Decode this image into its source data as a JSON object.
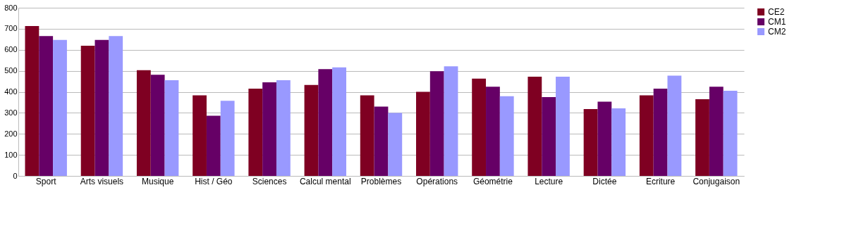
{
  "chart_data": {
    "type": "bar",
    "categories": [
      "Sport",
      "Arts visuels",
      "Musique",
      "Hist / Géo",
      "Sciences",
      "Calcul mental",
      "Problèmes",
      "Opérations",
      "Géométrie",
      "Lecture",
      "Dictée",
      "Ecriture",
      "Conjugaison"
    ],
    "series": [
      {
        "name": "CE2",
        "color": "#7f0022",
        "values": [
          713,
          619,
          503,
          383,
          415,
          433,
          383,
          400,
          463,
          472,
          318,
          383,
          365
        ]
      },
      {
        "name": "CM1",
        "color": "#660066",
        "values": [
          665,
          647,
          481,
          286,
          445,
          508,
          330,
          498,
          424,
          375,
          353,
          415,
          424
        ]
      },
      {
        "name": "CM2",
        "color": "#9999ff",
        "values": [
          647,
          665,
          455,
          357,
          455,
          516,
          300,
          521,
          379,
          472,
          321,
          477,
          405
        ]
      }
    ],
    "ylim": [
      0,
      800
    ],
    "yticks": [
      0,
      100,
      200,
      300,
      400,
      500,
      600,
      700,
      800
    ],
    "grid": "y",
    "legend": "right"
  }
}
